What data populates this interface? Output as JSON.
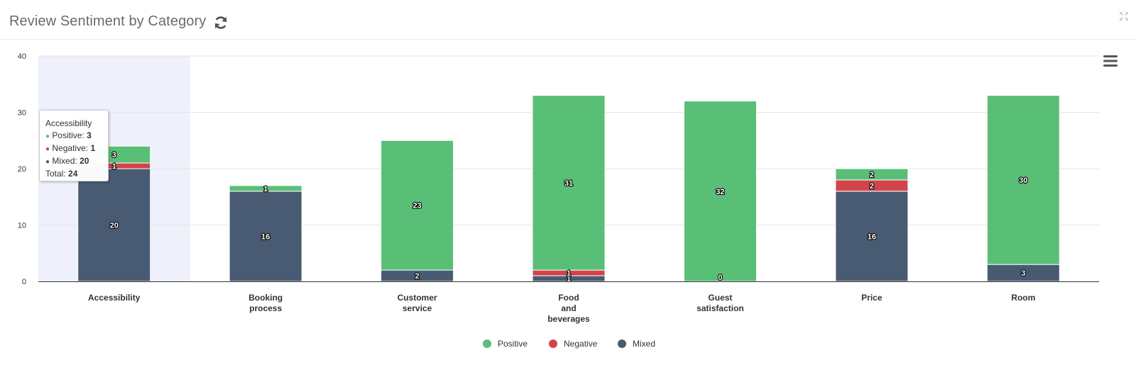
{
  "header": {
    "title": "Review Sentiment by Category",
    "refresh_icon": "refresh-icon",
    "expand_icon": "expand-icon",
    "menu_icon": "hamburger-menu-icon"
  },
  "colors": {
    "positive": "#5abf76",
    "negative": "#d2444a",
    "mixed": "#485b72",
    "highlight": "#eef0fb"
  },
  "tooltip": {
    "category": "Accessibility",
    "positive_label": "Positive:",
    "positive_value": "3",
    "negative_label": "Negative:",
    "negative_value": "1",
    "mixed_label": "Mixed:",
    "mixed_value": "20",
    "total_label": "Total:",
    "total_value": "24"
  },
  "chart_data": {
    "type": "bar",
    "stacked": true,
    "categories": [
      [
        "Accessibility"
      ],
      [
        "Booking",
        "process"
      ],
      [
        "Customer",
        "service"
      ],
      [
        "Food",
        "and",
        "beverages"
      ],
      [
        "Guest",
        "satisfaction"
      ],
      [
        "Price"
      ],
      [
        "Room"
      ]
    ],
    "series": [
      {
        "name": "Positive",
        "values": [
          3,
          1,
          23,
          31,
          32,
          2,
          30
        ]
      },
      {
        "name": "Negative",
        "values": [
          1,
          0,
          0,
          1,
          0,
          2,
          0
        ]
      },
      {
        "name": "Mixed",
        "values": [
          20,
          16,
          2,
          1,
          0,
          16,
          3
        ]
      }
    ],
    "ylim": [
      0,
      40
    ],
    "yticks": [
      0,
      10,
      20,
      30,
      40
    ],
    "grid": true,
    "highlighted_category": "Accessibility",
    "legend_position": "bottom-center"
  }
}
